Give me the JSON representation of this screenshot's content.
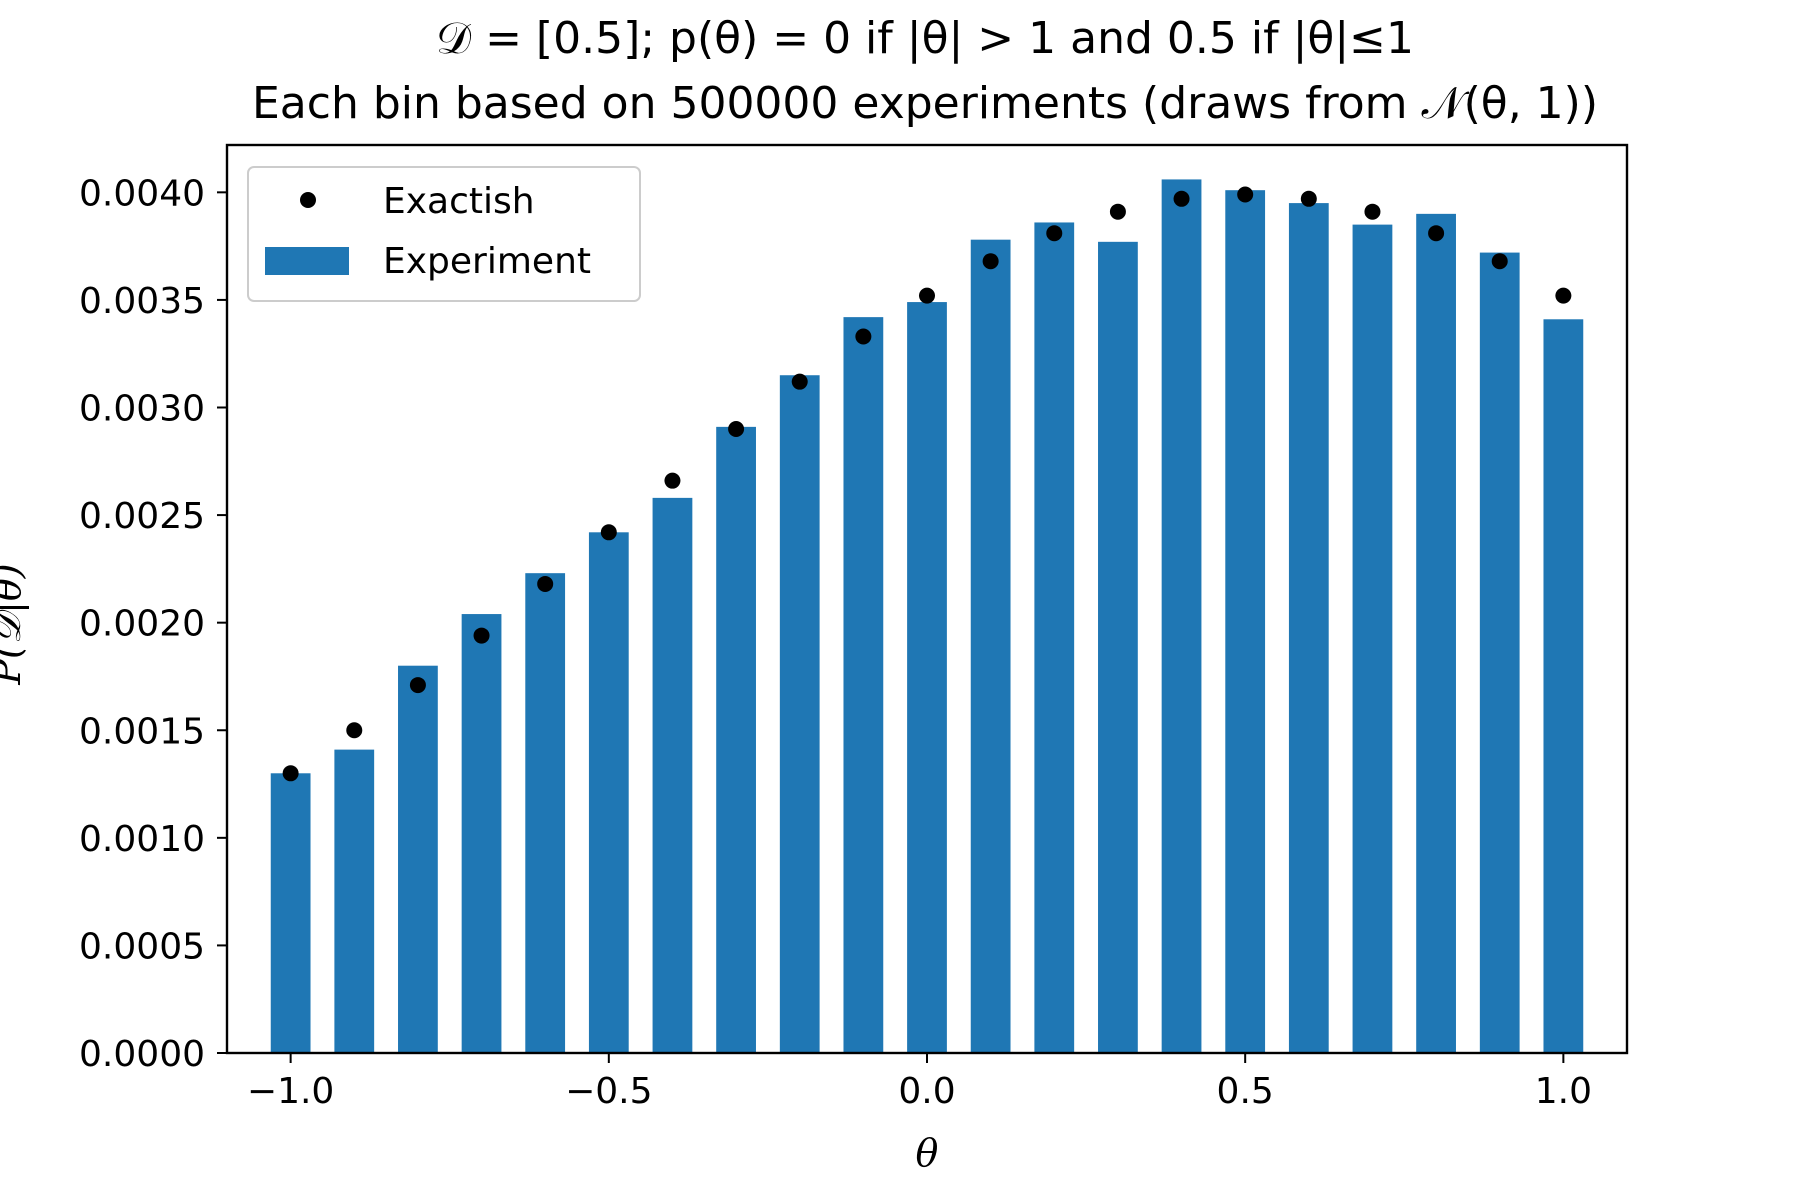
{
  "chart_data": {
    "type": "bar",
    "title": "𝒟 = [0.5]; p(θ) = 0 if |θ| > 1 and 0.5 if |θ|≤1",
    "subtitle": "Each bin based on 500000 experiments (draws from 𝒩(θ, 1))",
    "xlabel": "θ",
    "ylabel": "P(𝒟|θ)",
    "xlim": [
      -1.1,
      1.1
    ],
    "ylim": [
      0,
      0.00422
    ],
    "grid": false,
    "legend_position": "top-left",
    "x_ticks": [
      {
        "value": -1.0,
        "label": "−1.0"
      },
      {
        "value": -0.5,
        "label": "−0.5"
      },
      {
        "value": 0.0,
        "label": "0.0"
      },
      {
        "value": 0.5,
        "label": "0.5"
      },
      {
        "value": 1.0,
        "label": "1.0"
      }
    ],
    "y_ticks": [
      {
        "value": 0.0,
        "label": "0.0000"
      },
      {
        "value": 0.0005,
        "label": "0.0005"
      },
      {
        "value": 0.001,
        "label": "0.0010"
      },
      {
        "value": 0.0015,
        "label": "0.0015"
      },
      {
        "value": 0.002,
        "label": "0.0020"
      },
      {
        "value": 0.0025,
        "label": "0.0025"
      },
      {
        "value": 0.003,
        "label": "0.0030"
      },
      {
        "value": 0.0035,
        "label": "0.0035"
      },
      {
        "value": 0.004,
        "label": "0.0040"
      }
    ],
    "x": [
      -1.0,
      -0.9,
      -0.8,
      -0.7,
      -0.6,
      -0.5,
      -0.4,
      -0.3,
      -0.2,
      -0.1,
      0.0,
      0.1,
      0.2,
      0.3,
      0.4,
      0.5,
      0.6,
      0.7,
      0.8,
      0.9,
      1.0
    ],
    "bar_width": 0.05,
    "series": [
      {
        "name": "Experiment",
        "kind": "bar",
        "color": "#1f77b4",
        "values": [
          0.0013,
          0.00141,
          0.0018,
          0.00204,
          0.00223,
          0.00242,
          0.00258,
          0.00291,
          0.00315,
          0.00342,
          0.00349,
          0.00378,
          0.00386,
          0.00377,
          0.00406,
          0.00401,
          0.00395,
          0.00385,
          0.0039,
          0.00372,
          0.00341
        ]
      },
      {
        "name": "Exactish",
        "kind": "scatter",
        "color": "#000000",
        "values": [
          0.0013,
          0.0015,
          0.00171,
          0.00194,
          0.00218,
          0.00242,
          0.00266,
          0.0029,
          0.00312,
          0.00333,
          0.00352,
          0.00368,
          0.00381,
          0.00391,
          0.00397,
          0.00399,
          0.00397,
          0.00391,
          0.00381,
          0.00368,
          0.00352
        ]
      }
    ]
  }
}
